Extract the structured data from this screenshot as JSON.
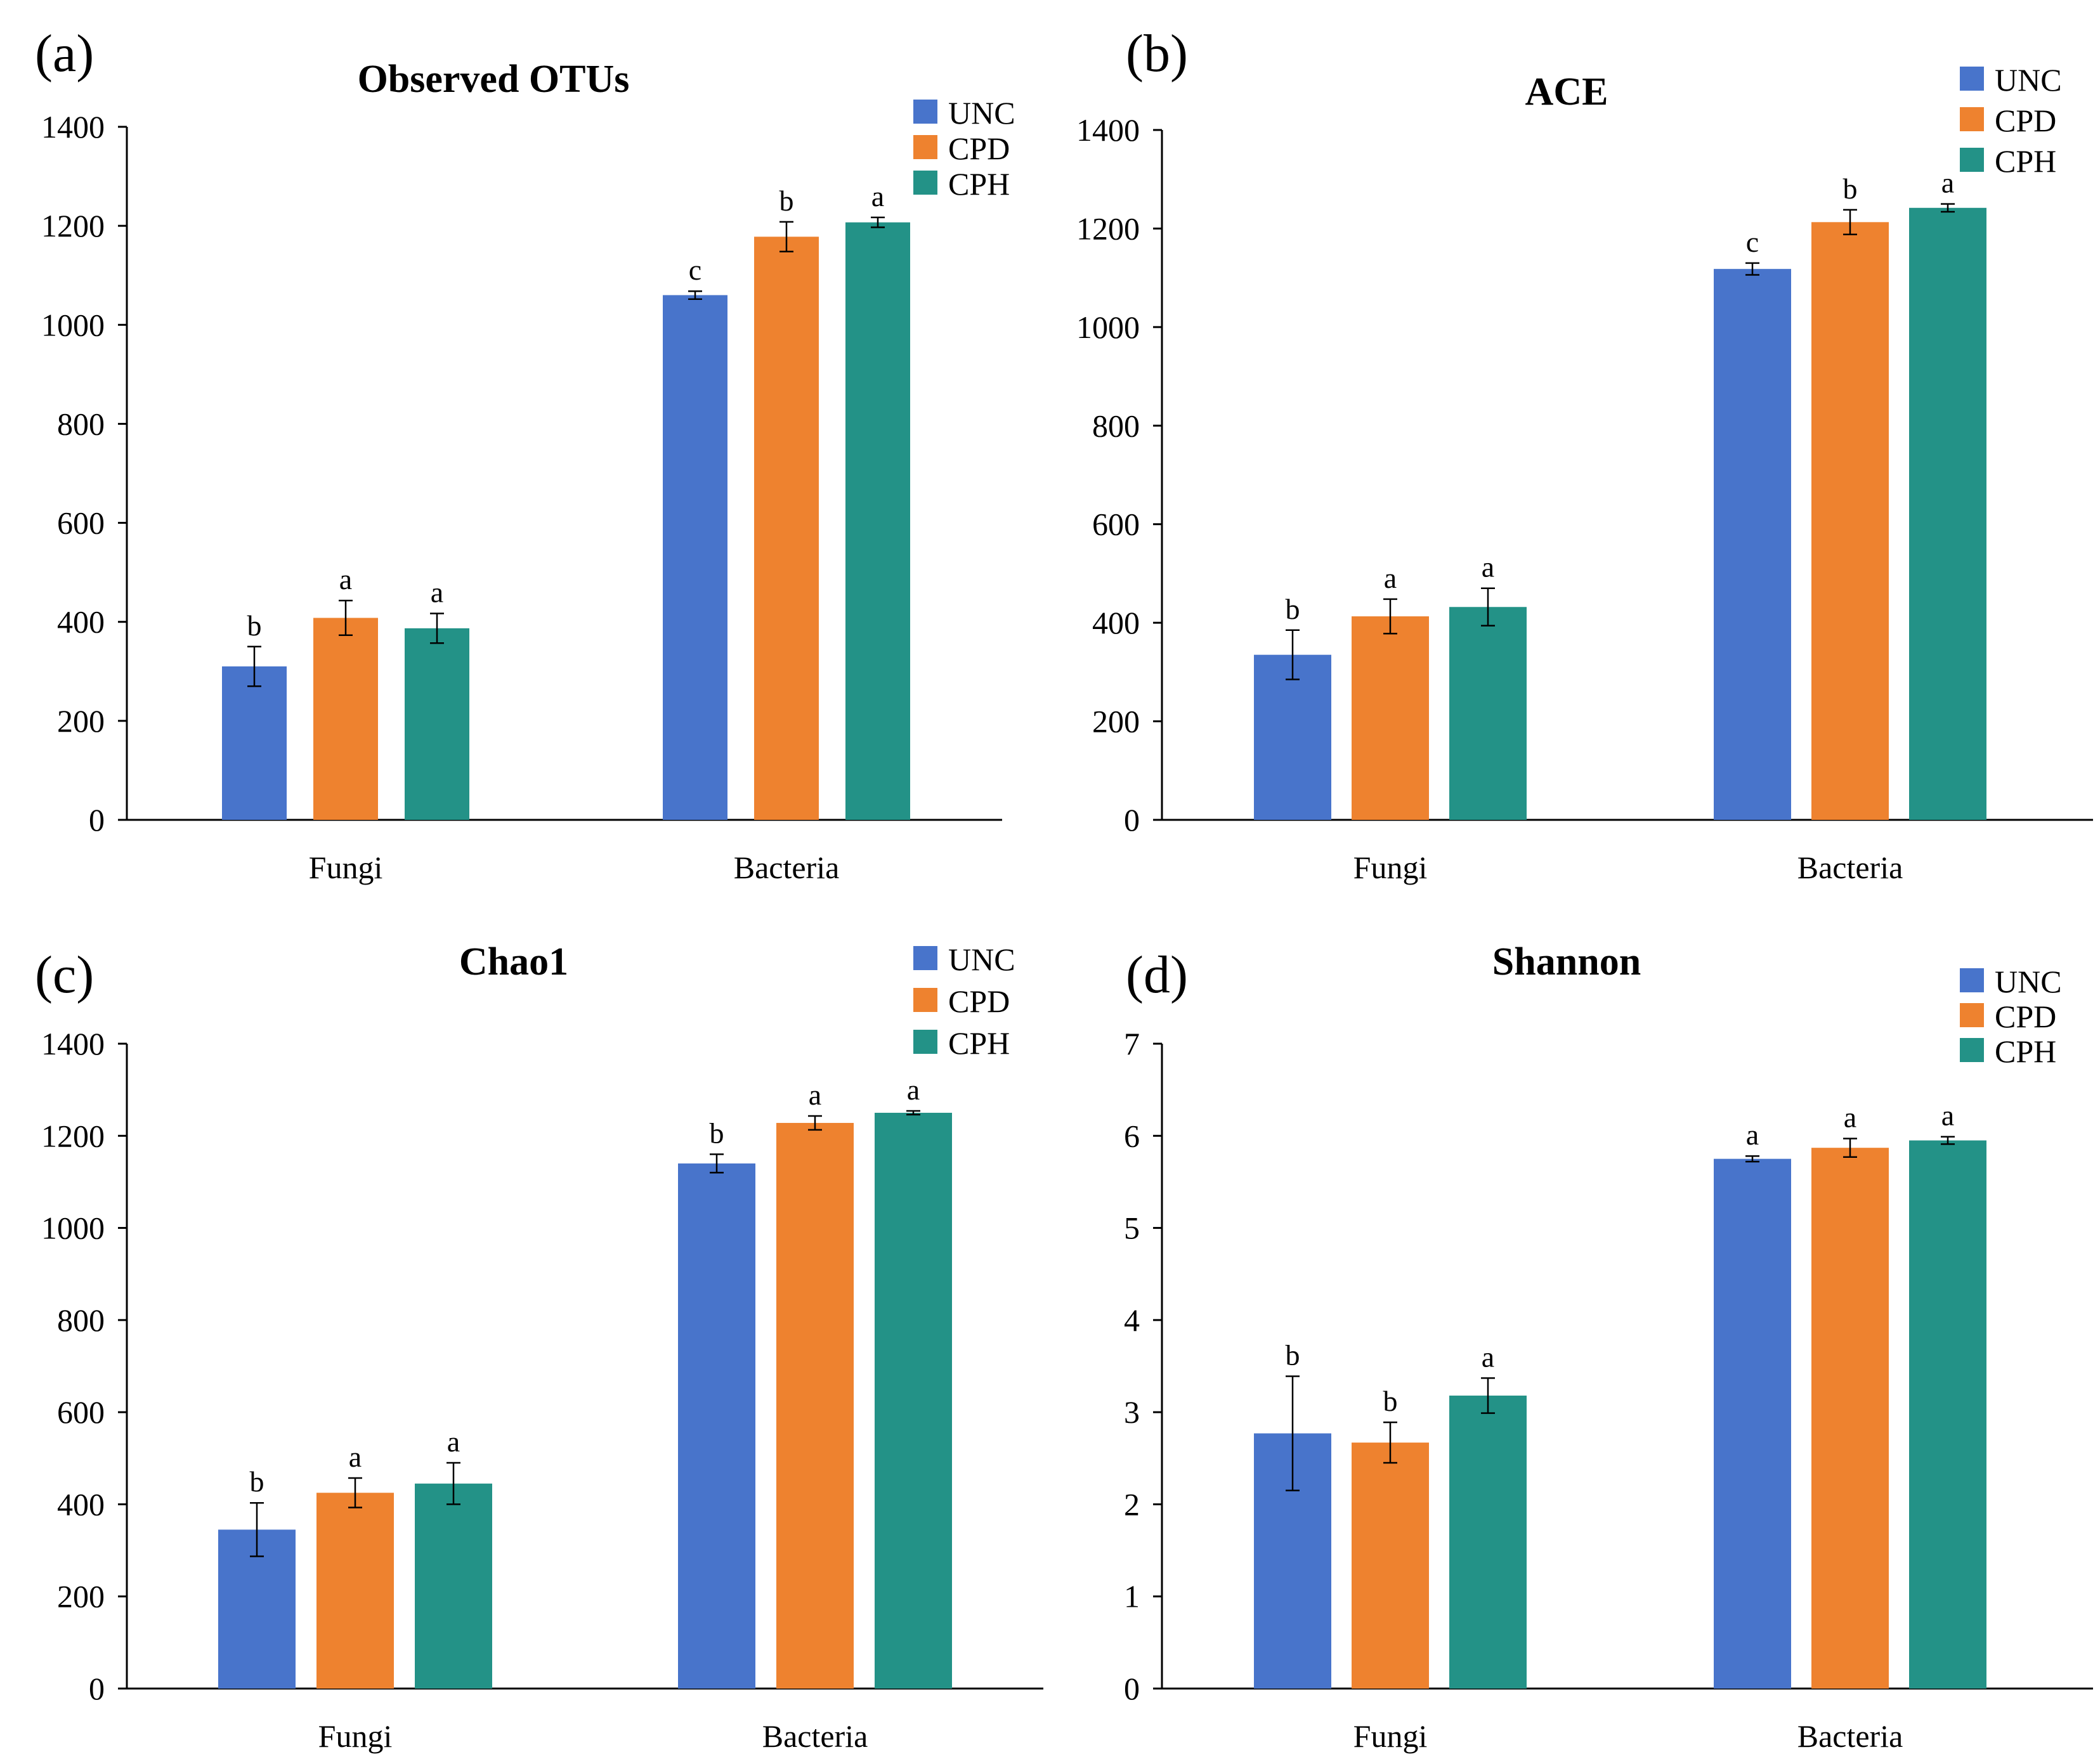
{
  "colors": {
    "UNC": "#4874cb",
    "CPD": "#ee822f",
    "CPH": "#239287"
  },
  "chart_data": [
    {
      "panel": "(a)",
      "type": "bar",
      "title": "Observed OTUs",
      "categories": [
        "Fungi",
        "Bacteria"
      ],
      "series": [
        {
          "name": "UNC",
          "values": [
            310,
            1060
          ],
          "errors": [
            40,
            8
          ],
          "letters": [
            "b",
            "c"
          ]
        },
        {
          "name": "CPD",
          "values": [
            408,
            1178
          ],
          "errors": [
            35,
            30
          ],
          "letters": [
            "a",
            "b"
          ]
        },
        {
          "name": "CPH",
          "values": [
            387,
            1207
          ],
          "errors": [
            30,
            10
          ],
          "letters": [
            "a",
            "a"
          ]
        }
      ],
      "yticks": [
        0,
        200,
        400,
        600,
        800,
        1000,
        1200,
        1400
      ],
      "ylim": [
        0,
        1400
      ],
      "legend": [
        "UNC",
        "CPD",
        "CPH"
      ],
      "legend_position": "top-right"
    },
    {
      "panel": "(b)",
      "type": "bar",
      "title": "ACE",
      "categories": [
        "Fungi",
        "Bacteria"
      ],
      "series": [
        {
          "name": "UNC",
          "values": [
            335,
            1118
          ],
          "errors": [
            50,
            12
          ],
          "letters": [
            "b",
            "c"
          ]
        },
        {
          "name": "CPD",
          "values": [
            413,
            1213
          ],
          "errors": [
            35,
            25
          ],
          "letters": [
            "a",
            "b"
          ]
        },
        {
          "name": "CPH",
          "values": [
            432,
            1242
          ],
          "errors": [
            38,
            8
          ],
          "letters": [
            "a",
            "a"
          ]
        }
      ],
      "yticks": [
        0,
        200,
        400,
        600,
        800,
        1000,
        1200,
        1400
      ],
      "ylim": [
        0,
        1400
      ],
      "legend": [
        "UNC",
        "CPD",
        "CPH"
      ],
      "legend_position": "top-right"
    },
    {
      "panel": "(c)",
      "type": "bar",
      "title": "Chao1",
      "categories": [
        "Fungi",
        "Bacteria"
      ],
      "series": [
        {
          "name": "UNC",
          "values": [
            345,
            1140
          ],
          "errors": [
            58,
            20
          ],
          "letters": [
            "b",
            "b"
          ]
        },
        {
          "name": "CPD",
          "values": [
            425,
            1228
          ],
          "errors": [
            32,
            15
          ],
          "letters": [
            "a",
            "a"
          ]
        },
        {
          "name": "CPH",
          "values": [
            445,
            1250
          ],
          "errors": [
            45,
            4
          ],
          "letters": [
            "a",
            "a"
          ]
        }
      ],
      "yticks": [
        0,
        200,
        400,
        600,
        800,
        1000,
        1200,
        1400
      ],
      "ylim": [
        0,
        1400
      ],
      "legend": [
        "UNC",
        "CPD",
        "CPH"
      ],
      "legend_position": "top-right"
    },
    {
      "panel": "(d)",
      "type": "bar",
      "title": "Shannon",
      "categories": [
        "Fungi",
        "Bacteria"
      ],
      "series": [
        {
          "name": "UNC",
          "values": [
            2.77,
            5.75
          ],
          "errors": [
            0.62,
            0.03
          ],
          "letters": [
            "b",
            "a"
          ]
        },
        {
          "name": "CPD",
          "values": [
            2.67,
            5.87
          ],
          "errors": [
            0.22,
            0.1
          ],
          "letters": [
            "b",
            "a"
          ]
        },
        {
          "name": "CPH",
          "values": [
            3.18,
            5.95
          ],
          "errors": [
            0.19,
            0.04
          ],
          "letters": [
            "a",
            "a"
          ]
        }
      ],
      "yticks": [
        0,
        1,
        2,
        3,
        4,
        5,
        6,
        7
      ],
      "ylim": [
        0,
        7
      ],
      "legend": [
        "UNC",
        "CPD",
        "CPH"
      ],
      "legend_position": "top-right"
    }
  ]
}
